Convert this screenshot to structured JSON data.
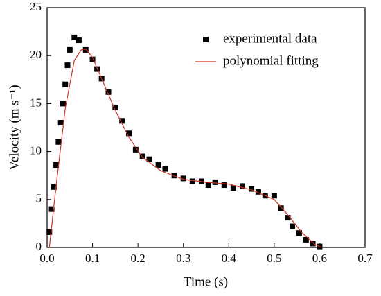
{
  "chart_data": {
    "type": "scatter",
    "xlabel": "Time (s)",
    "ylabel": "Velocity (m s⁻¹)",
    "xlim": [
      0,
      0.7
    ],
    "ylim": [
      0,
      25
    ],
    "xticks": [
      {
        "value": 0,
        "label": "0.0"
      },
      0.1,
      0.2,
      0.3,
      0.4,
      0.5,
      0.6,
      0.7
    ],
    "yticks": [
      0,
      5,
      10,
      15,
      20,
      25
    ],
    "legend": "upper right",
    "series": [
      {
        "name": "experimental data",
        "color": "#000000",
        "mode": "markers",
        "x": [
          0.005,
          0.01,
          0.015,
          0.02,
          0.025,
          0.03,
          0.035,
          0.04,
          0.045,
          0.05,
          0.06,
          0.07,
          0.085,
          0.1,
          0.11,
          0.12,
          0.135,
          0.15,
          0.165,
          0.18,
          0.195,
          0.21,
          0.225,
          0.245,
          0.26,
          0.28,
          0.3,
          0.32,
          0.34,
          0.355,
          0.37,
          0.39,
          0.41,
          0.43,
          0.45,
          0.465,
          0.48,
          0.5,
          0.515,
          0.53,
          0.54,
          0.555,
          0.57,
          0.585,
          0.6
        ],
        "values": [
          1.6,
          4.0,
          6.3,
          8.6,
          11,
          13,
          15,
          17,
          19,
          20.6,
          21.9,
          21.6,
          20.6,
          19.6,
          18.6,
          17.6,
          16.2,
          14.6,
          13.2,
          11.9,
          10.2,
          9.5,
          9.2,
          8.6,
          8.2,
          7.5,
          7.2,
          6.9,
          6.9,
          6.5,
          6.8,
          6.5,
          6.2,
          6.4,
          6.1,
          5.8,
          5.4,
          5.4,
          4.1,
          3.1,
          2.2,
          1.5,
          0.8,
          0.4,
          0.1
        ]
      },
      {
        "name": "polynomial fitting",
        "color": "#cc3322",
        "mode": "line",
        "x": [
          0.005,
          0.02,
          0.04,
          0.06,
          0.075,
          0.085,
          0.1,
          0.12,
          0.15,
          0.18,
          0.21,
          0.25,
          0.3,
          0.35,
          0.4,
          0.45,
          0.5,
          0.53,
          0.56,
          0.59,
          0.605
        ],
        "values": [
          0,
          6.5,
          14.5,
          19.5,
          20.6,
          20.7,
          19.8,
          17.6,
          14.3,
          11.5,
          9.4,
          8.0,
          7.1,
          6.8,
          6.6,
          6.0,
          5.0,
          3.4,
          1.6,
          0.3,
          0
        ]
      }
    ]
  }
}
